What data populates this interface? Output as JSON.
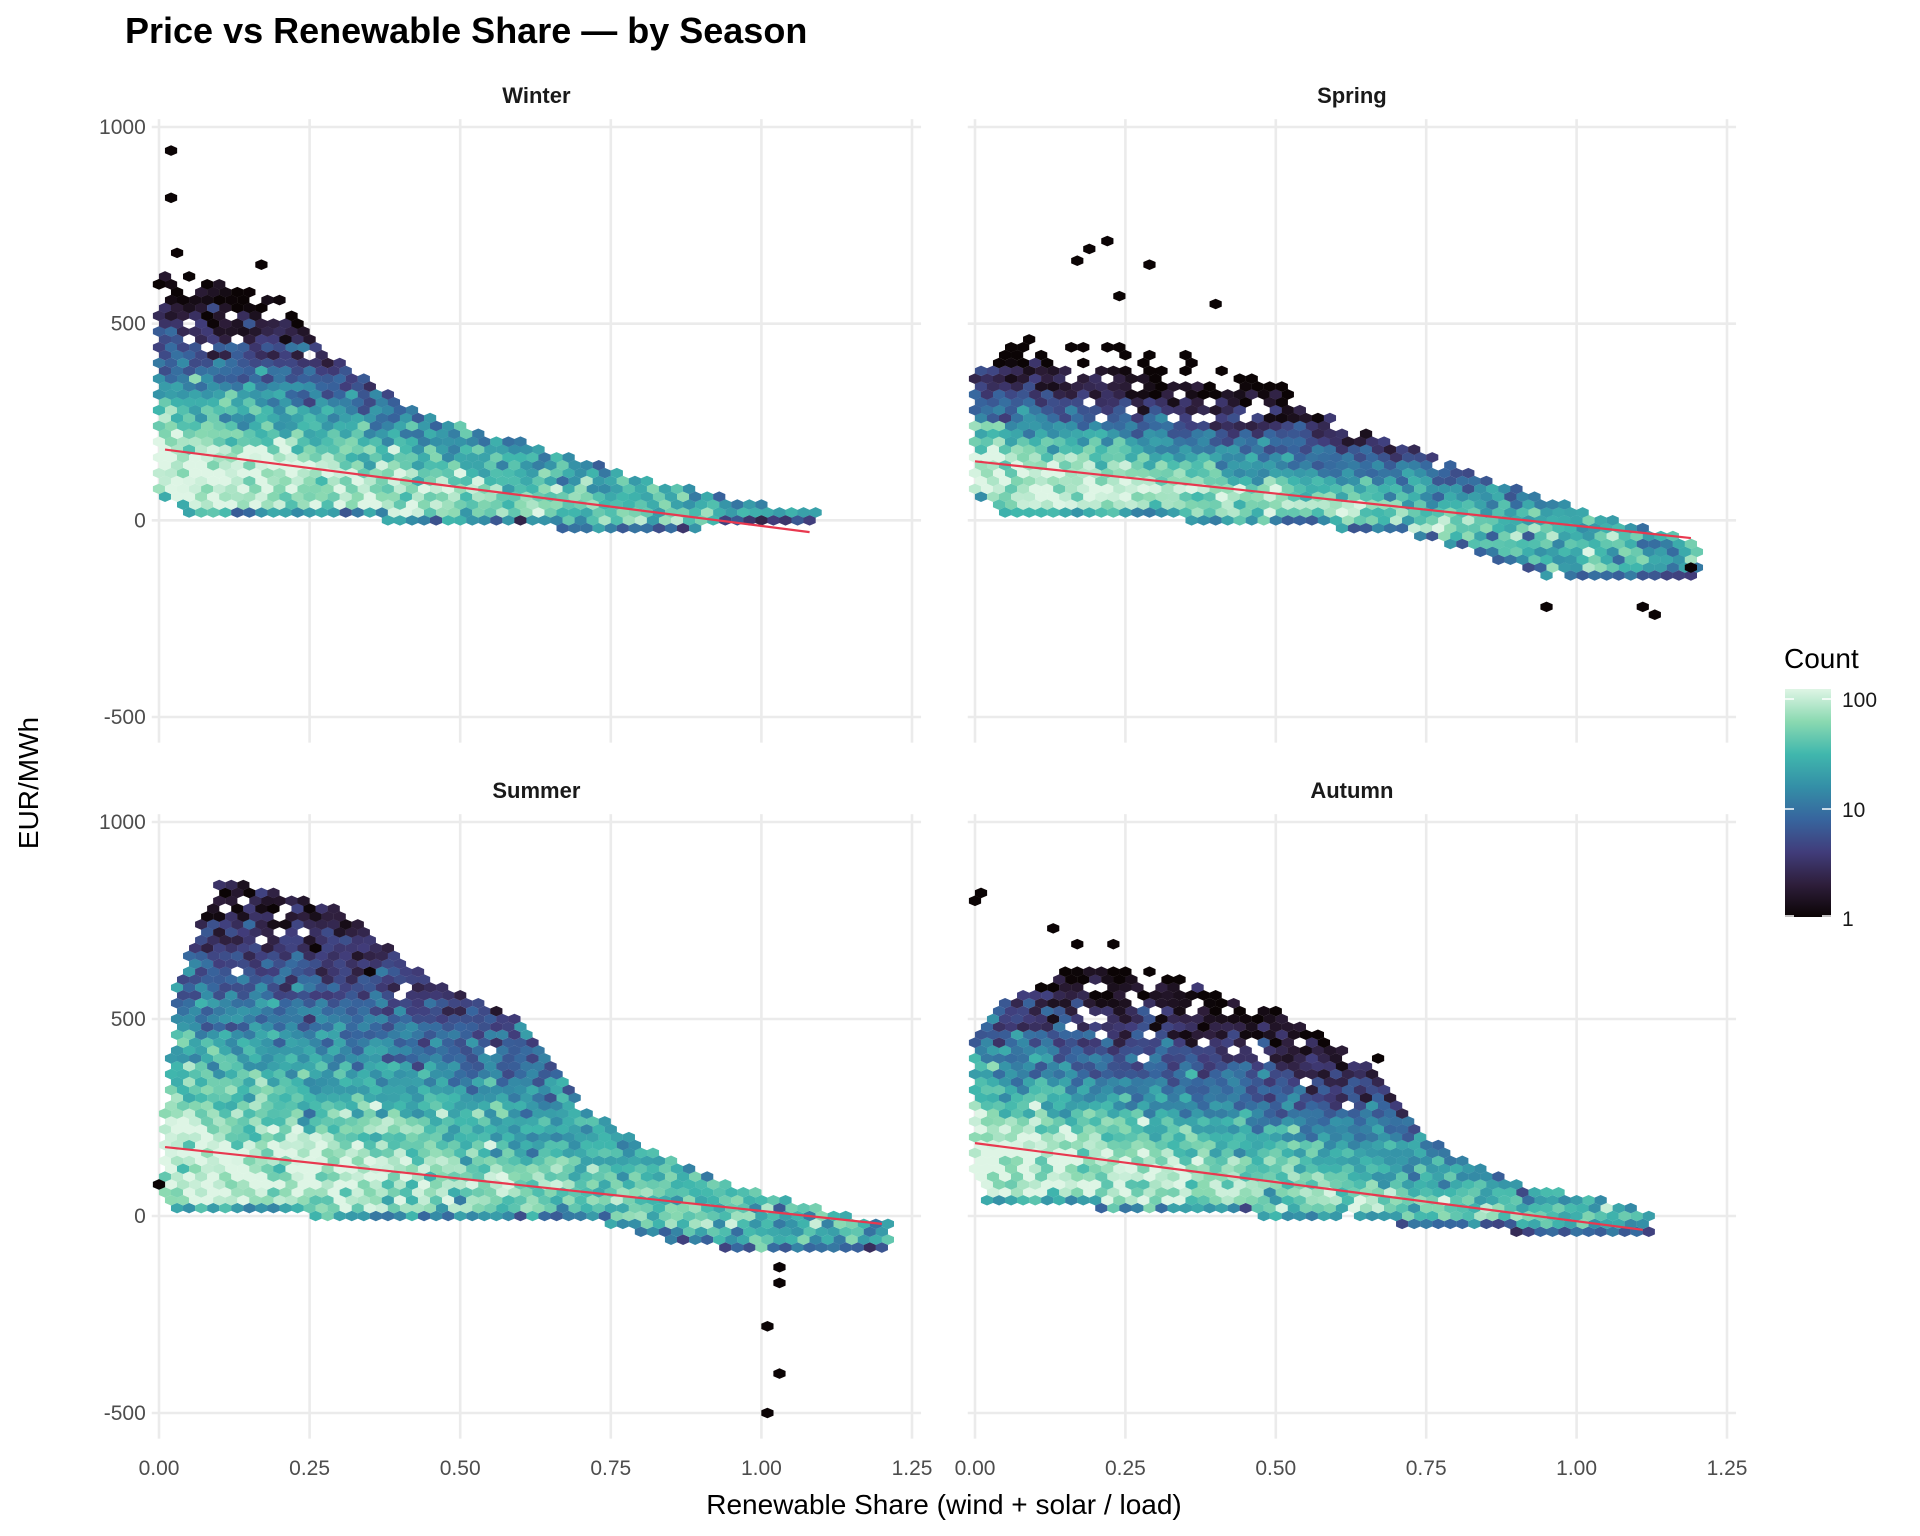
{
  "chart_data": {
    "type": "hexbin",
    "title": "Price vs Renewable Share — by Season",
    "xlabel": "Renewable Share (wind + solar / load)",
    "ylabel": "EUR/MWh",
    "xlim": [
      -0.012,
      1.265
    ],
    "ylim": [
      -565,
      1020
    ],
    "x_ticks": [
      0,
      0.25,
      0.5,
      0.75,
      1,
      1.25
    ],
    "x_tick_labels": [
      "0.00",
      "0.25",
      "0.50",
      "0.75",
      "1.00",
      "1.25"
    ],
    "y_ticks": [
      -500,
      0,
      500,
      1000
    ],
    "y_tick_labels": [
      "-500",
      "0",
      "500",
      "1000"
    ],
    "grid": true,
    "legend": {
      "title": "Count",
      "scale": "log10",
      "range": [
        1,
        100
      ],
      "tick_labels": [
        "100",
        "10",
        "1"
      ],
      "tick_values": [
        100,
        10,
        1
      ],
      "palette": [
        "#0B0405",
        "#2E1E3B",
        "#413D7B",
        "#37659E",
        "#348FA7",
        "#40B7AD",
        "#8AD9B1",
        "#DEF5E5"
      ],
      "position": "right"
    },
    "trend_color": "#e8384f",
    "panels": [
      {
        "name": "Winter",
        "xmax": 1.09,
        "decay": 90,
        "trend": [
          [
            0.01,
            180
          ],
          [
            1.08,
            -30
          ]
        ],
        "upper": [
          [
            0,
            660
          ],
          [
            0.1,
            600
          ],
          [
            0.2,
            560
          ],
          [
            0.3,
            400
          ],
          [
            0.45,
            260
          ],
          [
            0.6,
            200
          ],
          [
            0.8,
            110
          ],
          [
            1.0,
            40
          ],
          [
            1.09,
            20
          ]
        ],
        "lower": [
          [
            0,
            60
          ],
          [
            0.05,
            20
          ],
          [
            0.3,
            5
          ],
          [
            0.6,
            -15
          ],
          [
            0.8,
            -30
          ],
          [
            1.0,
            -10
          ],
          [
            1.09,
            0
          ]
        ],
        "outliers": [
          [
            0.02,
            940
          ],
          [
            0.02,
            820
          ],
          [
            0.17,
            650
          ],
          [
            0.03,
            680
          ],
          [
            0.0,
            600
          ]
        ]
      },
      {
        "name": "Spring",
        "xmax": 1.2,
        "decay": 62,
        "trend": [
          [
            0.0,
            150
          ],
          [
            1.19,
            -45
          ]
        ],
        "upper": [
          [
            0,
            380
          ],
          [
            0.1,
            480
          ],
          [
            0.2,
            450
          ],
          [
            0.35,
            420
          ],
          [
            0.5,
            350
          ],
          [
            0.6,
            250
          ],
          [
            0.75,
            170
          ],
          [
            0.9,
            80
          ],
          [
            1.0,
            30
          ],
          [
            1.2,
            -50
          ]
        ],
        "lower": [
          [
            0,
            60
          ],
          [
            0.05,
            20
          ],
          [
            0.5,
            -10
          ],
          [
            0.7,
            -30
          ],
          [
            0.8,
            -70
          ],
          [
            0.95,
            -140
          ],
          [
            1.2,
            -140
          ]
        ],
        "outliers": [
          [
            0.22,
            710
          ],
          [
            0.19,
            690
          ],
          [
            0.17,
            660
          ],
          [
            0.29,
            650
          ],
          [
            0.24,
            570
          ],
          [
            0.4,
            550
          ],
          [
            0.95,
            -220
          ],
          [
            1.11,
            -220
          ],
          [
            1.13,
            -240
          ],
          [
            1.19,
            -120
          ]
        ]
      },
      {
        "name": "Summer",
        "xmax": 1.21,
        "decay": 165,
        "trend": [
          [
            0.01,
            175
          ],
          [
            1.2,
            -20
          ]
        ],
        "upper": [
          [
            0,
            100
          ],
          [
            0.03,
            600
          ],
          [
            0.1,
            860
          ],
          [
            0.3,
            780
          ],
          [
            0.45,
            600
          ],
          [
            0.6,
            500
          ],
          [
            0.7,
            280
          ],
          [
            0.8,
            180
          ],
          [
            0.95,
            80
          ],
          [
            1.1,
            20
          ],
          [
            1.21,
            -20
          ]
        ],
        "lower": [
          [
            0,
            60
          ],
          [
            0.02,
            20
          ],
          [
            0.3,
            -5
          ],
          [
            0.75,
            -20
          ],
          [
            0.85,
            -60
          ],
          [
            1.0,
            -100
          ],
          [
            1.2,
            -80
          ]
        ],
        "outliers": [
          [
            1.01,
            -280
          ],
          [
            1.03,
            -400
          ],
          [
            1.01,
            -500
          ],
          [
            1.03,
            -170
          ],
          [
            1.03,
            -130
          ],
          [
            0.0,
            80
          ]
        ]
      },
      {
        "name": "Autumn",
        "xmax": 1.13,
        "decay": 105,
        "trend": [
          [
            0.0,
            185
          ],
          [
            1.11,
            -35
          ]
        ],
        "upper": [
          [
            0,
            450
          ],
          [
            0.05,
            550
          ],
          [
            0.15,
            620
          ],
          [
            0.3,
            620
          ],
          [
            0.5,
            520
          ],
          [
            0.65,
            400
          ],
          [
            0.75,
            200
          ],
          [
            0.9,
            80
          ],
          [
            1.05,
            40
          ],
          [
            1.13,
            10
          ]
        ],
        "lower": [
          [
            0,
            100
          ],
          [
            0.02,
            40
          ],
          [
            0.3,
            10
          ],
          [
            0.55,
            -5
          ],
          [
            0.8,
            -30
          ],
          [
            0.9,
            -40
          ],
          [
            1.12,
            -40
          ]
        ],
        "outliers": [
          [
            0.0,
            800
          ],
          [
            0.01,
            820
          ],
          [
            0.13,
            730
          ],
          [
            0.17,
            690
          ],
          [
            0.23,
            690
          ],
          [
            0.67,
            400
          ]
        ]
      }
    ]
  }
}
